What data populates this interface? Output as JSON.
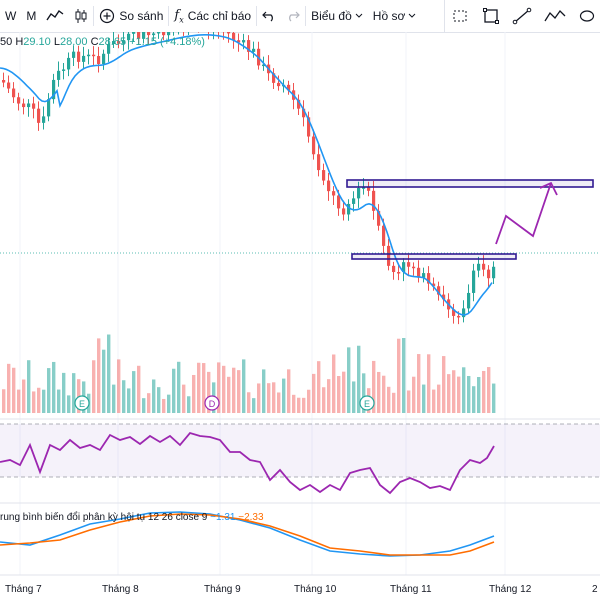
{
  "toolbar": {
    "interval_w": "W",
    "interval_m": "M",
    "compare_label": "So sánh",
    "indicators_label": "Các chỉ báo",
    "chart_label": "Biểu đồ",
    "profile_label": "Hồ sơ"
  },
  "ohlc": {
    "o_part": "50",
    "h_label": "H",
    "h": "29.10",
    "l_label": "L",
    "l": "28.00",
    "c_label": "C",
    "c": "28.65",
    "change": "+1.15 (+4.18%)"
  },
  "macd_legend": {
    "text": "rung bình biến đổi phân kỳ hội tụ 12 26 close 9",
    "v1": "1.31",
    "v2": "2.33"
  },
  "x_axis": [
    "Tháng 7",
    "Tháng 8",
    "Tháng 9",
    "Tháng 10",
    "Tháng 11",
    "Tháng 12",
    "2"
  ],
  "markers": [
    "E",
    "D",
    "E"
  ],
  "colors": {
    "up": "#26a69a",
    "down": "#ef5350",
    "ma": "#2196f3",
    "rsi": "#9c27b0",
    "macd": "#2196f3",
    "signal": "#ff6d00",
    "box": "#311b92",
    "forecast": "#9c27b0"
  },
  "icons": [
    "line-chart-icon",
    "candles-icon",
    "plus-circle-icon",
    "fx-icon",
    "undo-icon",
    "redo-icon",
    "rectangle-icon",
    "trend-line-icon",
    "path-icon",
    "ellipse-icon"
  ]
}
